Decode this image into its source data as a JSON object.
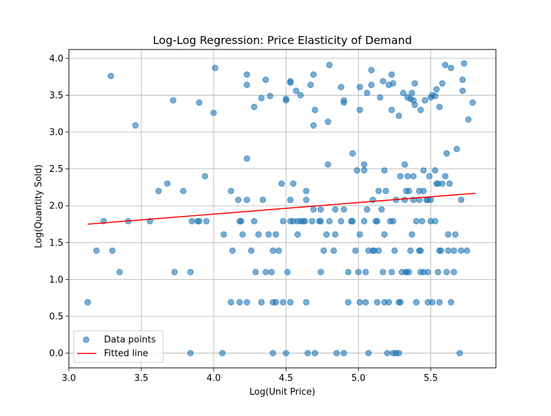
{
  "chart_data": {
    "type": "scatter",
    "title": "Log-Log Regression: Price Elasticity of Demand",
    "xlabel": "Log(Unit Price)",
    "ylabel": "Log(Quantity Sold)",
    "xlim": [
      3.0,
      5.95
    ],
    "ylim": [
      -0.2,
      4.12
    ],
    "xticks": [
      3.0,
      3.5,
      4.0,
      4.5,
      5.0,
      5.5
    ],
    "yticks": [
      0.0,
      0.5,
      1.0,
      1.5,
      2.0,
      2.5,
      3.0,
      3.5,
      4.0
    ],
    "xtick_labels": [
      "3.0",
      "3.5",
      "4.0",
      "4.5",
      "5.0",
      "5.5"
    ],
    "ytick_labels": [
      "0.0",
      "0.5",
      "1.0",
      "1.5",
      "2.0",
      "2.5",
      "3.0",
      "3.5",
      "4.0"
    ],
    "grid": true,
    "legend_position": "lower-left",
    "colors": {
      "points": "#1f77b4",
      "line": "#ff0000"
    },
    "series": [
      {
        "name": "Data points",
        "kind": "scatter",
        "points": [
          [
            3.13,
            0.69
          ],
          [
            3.19,
            1.39
          ],
          [
            3.24,
            1.79
          ],
          [
            3.29,
            3.76
          ],
          [
            3.3,
            1.39
          ],
          [
            3.35,
            1.1
          ],
          [
            3.41,
            1.79
          ],
          [
            3.46,
            3.09
          ],
          [
            3.56,
            1.79
          ],
          [
            3.62,
            2.2
          ],
          [
            3.68,
            2.3
          ],
          [
            3.72,
            3.43
          ],
          [
            3.73,
            1.1
          ],
          [
            3.79,
            2.2
          ],
          [
            3.84,
            1.1
          ],
          [
            3.85,
            1.79
          ],
          [
            3.84,
            0.0
          ],
          [
            3.89,
            1.79
          ],
          [
            3.9,
            1.79
          ],
          [
            3.9,
            3.4
          ],
          [
            3.94,
            2.4
          ],
          [
            3.95,
            1.79
          ],
          [
            4.0,
            3.26
          ],
          [
            4.01,
            3.87
          ],
          [
            4.06,
            0.0
          ],
          [
            4.07,
            1.61
          ],
          [
            4.12,
            2.2
          ],
          [
            4.13,
            1.39
          ],
          [
            4.12,
            0.69
          ],
          [
            4.17,
            2.08
          ],
          [
            4.18,
            1.79
          ],
          [
            4.19,
            1.79
          ],
          [
            4.18,
            0.69
          ],
          [
            4.2,
            1.61
          ],
          [
            4.23,
            2.64
          ],
          [
            4.23,
            3.64
          ],
          [
            4.23,
            3.78
          ],
          [
            4.23,
            2.08
          ],
          [
            4.23,
            0.69
          ],
          [
            4.26,
            1.39
          ],
          [
            4.28,
            3.34
          ],
          [
            4.28,
            1.79
          ],
          [
            4.29,
            1.1
          ],
          [
            4.31,
            1.61
          ],
          [
            4.33,
            3.46
          ],
          [
            4.33,
            0.69
          ],
          [
            4.34,
            2.08
          ],
          [
            4.36,
            3.71
          ],
          [
            4.36,
            1.1
          ],
          [
            4.39,
            3.49
          ],
          [
            4.38,
            1.61
          ],
          [
            4.4,
            1.1
          ],
          [
            4.41,
            1.39
          ],
          [
            4.41,
            0.69
          ],
          [
            4.41,
            0.0
          ],
          [
            4.43,
            1.61
          ],
          [
            4.43,
            0.69
          ],
          [
            4.45,
            1.39
          ],
          [
            4.47,
            2.3
          ],
          [
            4.48,
            1.79
          ],
          [
            4.48,
            0.69
          ],
          [
            4.5,
            3.45
          ],
          [
            4.5,
            3.43
          ],
          [
            4.51,
            1.1
          ],
          [
            4.5,
            0.0
          ],
          [
            4.53,
            3.69
          ],
          [
            4.53,
            3.67
          ],
          [
            4.53,
            1.79
          ],
          [
            4.53,
            2.08
          ],
          [
            4.53,
            0.69
          ],
          [
            4.55,
            2.3
          ],
          [
            4.55,
            1.79
          ],
          [
            4.57,
            3.56
          ],
          [
            4.58,
            1.61
          ],
          [
            4.58,
            1.79
          ],
          [
            4.6,
            3.5
          ],
          [
            4.6,
            1.79
          ],
          [
            4.62,
            1.79
          ],
          [
            4.63,
            1.79
          ],
          [
            4.64,
            2.2
          ],
          [
            4.64,
            2.08
          ],
          [
            4.64,
            0.69
          ],
          [
            4.65,
            0.0
          ],
          [
            4.67,
            3.64
          ],
          [
            4.68,
            1.79
          ],
          [
            4.69,
            3.78
          ],
          [
            4.69,
            1.95
          ],
          [
            4.69,
            3.09
          ],
          [
            4.7,
            3.3
          ],
          [
            4.7,
            0.0
          ],
          [
            4.73,
            1.79
          ],
          [
            4.74,
            1.79
          ],
          [
            4.74,
            1.1
          ],
          [
            4.74,
            1.95
          ],
          [
            4.76,
            1.39
          ],
          [
            4.78,
            1.61
          ],
          [
            4.79,
            3.14
          ],
          [
            4.79,
            2.56
          ],
          [
            4.8,
            3.91
          ],
          [
            4.8,
            1.79
          ],
          [
            4.83,
            1.39
          ],
          [
            4.84,
            1.61
          ],
          [
            4.84,
            1.95
          ],
          [
            4.85,
            0.0
          ],
          [
            4.88,
            1.79
          ],
          [
            4.88,
            3.61
          ],
          [
            4.9,
            3.43
          ],
          [
            4.9,
            3.4
          ],
          [
            4.9,
            1.95
          ],
          [
            4.9,
            0.0
          ],
          [
            4.93,
            1.1
          ],
          [
            4.95,
            1.79
          ],
          [
            4.96,
            1.79
          ],
          [
            4.96,
            2.71
          ],
          [
            4.93,
            0.69
          ],
          [
            4.98,
            1.39
          ],
          [
            4.99,
            2.48
          ],
          [
            5.0,
            1.1
          ],
          [
            5.01,
            3.61
          ],
          [
            5.01,
            3.3
          ],
          [
            5.01,
            1.61
          ],
          [
            5.01,
            0.69
          ],
          [
            5.04,
            2.56
          ],
          [
            5.04,
            2.48
          ],
          [
            5.04,
            1.79
          ],
          [
            5.05,
            0.69
          ],
          [
            5.05,
            1.1
          ],
          [
            5.06,
            3.53
          ],
          [
            5.06,
            1.95
          ],
          [
            5.07,
            1.39
          ],
          [
            5.07,
            0.0
          ],
          [
            5.09,
            3.64
          ],
          [
            5.09,
            3.84
          ],
          [
            5.1,
            1.39
          ],
          [
            5.1,
            2.08
          ],
          [
            5.11,
            1.39
          ],
          [
            5.12,
            1.79
          ],
          [
            5.13,
            1.79
          ],
          [
            5.13,
            0.69
          ],
          [
            5.14,
            1.39
          ],
          [
            5.14,
            2.2
          ],
          [
            5.15,
            3.47
          ],
          [
            5.16,
            1.95
          ],
          [
            5.17,
            3.69
          ],
          [
            5.17,
            1.1
          ],
          [
            5.18,
            1.61
          ],
          [
            5.18,
            0.69
          ],
          [
            5.18,
            2.48
          ],
          [
            5.19,
            2.2
          ],
          [
            5.2,
            0.0
          ],
          [
            5.21,
            3.64
          ],
          [
            5.21,
            0.69
          ],
          [
            5.22,
            1.79
          ],
          [
            5.23,
            3.78
          ],
          [
            5.23,
            3.3
          ],
          [
            5.23,
            1.1
          ],
          [
            5.24,
            1.79
          ],
          [
            5.24,
            3.66
          ],
          [
            5.24,
            0.0
          ],
          [
            5.25,
            1.39
          ],
          [
            5.26,
            2.08
          ],
          [
            5.26,
            0.0
          ],
          [
            5.28,
            0.0
          ],
          [
            5.28,
            0.69
          ],
          [
            5.28,
            3.22
          ],
          [
            5.29,
            2.4
          ],
          [
            5.29,
            0.69
          ],
          [
            5.3,
            1.1
          ],
          [
            5.31,
            3.53
          ],
          [
            5.32,
            2.56
          ],
          [
            5.32,
            2.08
          ],
          [
            5.33,
            2.2
          ],
          [
            5.33,
            1.1
          ],
          [
            5.33,
            1.1
          ],
          [
            5.34,
            3.47
          ],
          [
            5.34,
            2.4
          ],
          [
            5.35,
            1.1
          ],
          [
            5.35,
            2.2
          ],
          [
            5.36,
            3.45
          ],
          [
            5.36,
            1.39
          ],
          [
            5.37,
            1.61
          ],
          [
            5.37,
            3.53
          ],
          [
            5.38,
            3.43
          ],
          [
            5.38,
            2.4
          ],
          [
            5.38,
            2.08
          ],
          [
            5.39,
            3.37
          ],
          [
            5.39,
            3.66
          ],
          [
            5.4,
            1.79
          ],
          [
            5.4,
            0.69
          ],
          [
            5.42,
            2.2
          ],
          [
            5.42,
            2.08
          ],
          [
            5.42,
            1.39
          ],
          [
            5.43,
            1.39
          ],
          [
            5.43,
            1.1
          ],
          [
            5.43,
            3.3
          ],
          [
            5.44,
            1.79
          ],
          [
            5.45,
            1.1
          ],
          [
            5.45,
            2.48
          ],
          [
            5.45,
            2.2
          ],
          [
            5.46,
            3.43
          ],
          [
            5.47,
            2.08
          ],
          [
            5.48,
            1.1
          ],
          [
            5.48,
            2.08
          ],
          [
            5.48,
            0.69
          ],
          [
            5.49,
            2.4
          ],
          [
            5.5,
            3.47
          ],
          [
            5.5,
            2.08
          ],
          [
            5.5,
            1.79
          ],
          [
            5.51,
            0.69
          ],
          [
            5.51,
            3.5
          ],
          [
            5.53,
            2.48
          ],
          [
            5.53,
            1.79
          ],
          [
            5.53,
            3.49
          ],
          [
            5.54,
            2.3
          ],
          [
            5.54,
            3.58
          ],
          [
            5.55,
            2.3
          ],
          [
            5.55,
            1.1
          ],
          [
            5.56,
            3.34
          ],
          [
            5.56,
            1.39
          ],
          [
            5.56,
            0.69
          ],
          [
            5.57,
            1.39
          ],
          [
            5.58,
            2.3
          ],
          [
            5.58,
            3.66
          ],
          [
            5.6,
            3.91
          ],
          [
            5.6,
            2.4
          ],
          [
            5.61,
            2.71
          ],
          [
            5.61,
            1.1
          ],
          [
            5.62,
            1.61
          ],
          [
            5.62,
            1.39
          ],
          [
            5.63,
            2.3
          ],
          [
            5.64,
            0.69
          ],
          [
            5.64,
            3.87
          ],
          [
            5.66,
            1.39
          ],
          [
            5.66,
            1.1
          ],
          [
            5.67,
            1.61
          ],
          [
            5.68,
            2.77
          ],
          [
            5.7,
            0.0
          ],
          [
            5.71,
            1.39
          ],
          [
            5.71,
            2.08
          ],
          [
            5.72,
            3.71
          ],
          [
            5.72,
            3.56
          ],
          [
            5.73,
            3.93
          ],
          [
            5.75,
            1.39
          ],
          [
            5.76,
            3.17
          ],
          [
            5.79,
            3.4
          ]
        ]
      },
      {
        "name": "Fitted line",
        "kind": "line",
        "x": [
          3.13,
          5.81
        ],
        "y": [
          1.75,
          2.17
        ]
      }
    ]
  }
}
